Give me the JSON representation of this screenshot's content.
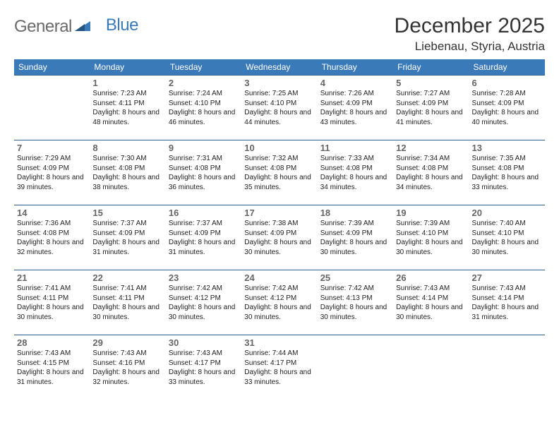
{
  "logo": {
    "part1": "General",
    "part2": "Blue"
  },
  "title": "December 2025",
  "location": "Liebenau, Styria, Austria",
  "colors": {
    "header_bg": "#3a7ab8",
    "header_text": "#ffffff",
    "border": "#2f5f8f",
    "logo_gray": "#6a6a6a",
    "logo_blue": "#3a7ab8",
    "daynum": "#666666",
    "text": "#222222"
  },
  "weekdays": [
    "Sunday",
    "Monday",
    "Tuesday",
    "Wednesday",
    "Thursday",
    "Friday",
    "Saturday"
  ],
  "weeks": [
    [
      null,
      {
        "n": "1",
        "sr": "7:23 AM",
        "ss": "4:11 PM",
        "dl": "8 hours and 48 minutes."
      },
      {
        "n": "2",
        "sr": "7:24 AM",
        "ss": "4:10 PM",
        "dl": "8 hours and 46 minutes."
      },
      {
        "n": "3",
        "sr": "7:25 AM",
        "ss": "4:10 PM",
        "dl": "8 hours and 44 minutes."
      },
      {
        "n": "4",
        "sr": "7:26 AM",
        "ss": "4:09 PM",
        "dl": "8 hours and 43 minutes."
      },
      {
        "n": "5",
        "sr": "7:27 AM",
        "ss": "4:09 PM",
        "dl": "8 hours and 41 minutes."
      },
      {
        "n": "6",
        "sr": "7:28 AM",
        "ss": "4:09 PM",
        "dl": "8 hours and 40 minutes."
      }
    ],
    [
      {
        "n": "7",
        "sr": "7:29 AM",
        "ss": "4:09 PM",
        "dl": "8 hours and 39 minutes."
      },
      {
        "n": "8",
        "sr": "7:30 AM",
        "ss": "4:08 PM",
        "dl": "8 hours and 38 minutes."
      },
      {
        "n": "9",
        "sr": "7:31 AM",
        "ss": "4:08 PM",
        "dl": "8 hours and 36 minutes."
      },
      {
        "n": "10",
        "sr": "7:32 AM",
        "ss": "4:08 PM",
        "dl": "8 hours and 35 minutes."
      },
      {
        "n": "11",
        "sr": "7:33 AM",
        "ss": "4:08 PM",
        "dl": "8 hours and 34 minutes."
      },
      {
        "n": "12",
        "sr": "7:34 AM",
        "ss": "4:08 PM",
        "dl": "8 hours and 34 minutes."
      },
      {
        "n": "13",
        "sr": "7:35 AM",
        "ss": "4:08 PM",
        "dl": "8 hours and 33 minutes."
      }
    ],
    [
      {
        "n": "14",
        "sr": "7:36 AM",
        "ss": "4:08 PM",
        "dl": "8 hours and 32 minutes."
      },
      {
        "n": "15",
        "sr": "7:37 AM",
        "ss": "4:09 PM",
        "dl": "8 hours and 31 minutes."
      },
      {
        "n": "16",
        "sr": "7:37 AM",
        "ss": "4:09 PM",
        "dl": "8 hours and 31 minutes."
      },
      {
        "n": "17",
        "sr": "7:38 AM",
        "ss": "4:09 PM",
        "dl": "8 hours and 30 minutes."
      },
      {
        "n": "18",
        "sr": "7:39 AM",
        "ss": "4:09 PM",
        "dl": "8 hours and 30 minutes."
      },
      {
        "n": "19",
        "sr": "7:39 AM",
        "ss": "4:10 PM",
        "dl": "8 hours and 30 minutes."
      },
      {
        "n": "20",
        "sr": "7:40 AM",
        "ss": "4:10 PM",
        "dl": "8 hours and 30 minutes."
      }
    ],
    [
      {
        "n": "21",
        "sr": "7:41 AM",
        "ss": "4:11 PM",
        "dl": "8 hours and 30 minutes."
      },
      {
        "n": "22",
        "sr": "7:41 AM",
        "ss": "4:11 PM",
        "dl": "8 hours and 30 minutes."
      },
      {
        "n": "23",
        "sr": "7:42 AM",
        "ss": "4:12 PM",
        "dl": "8 hours and 30 minutes."
      },
      {
        "n": "24",
        "sr": "7:42 AM",
        "ss": "4:12 PM",
        "dl": "8 hours and 30 minutes."
      },
      {
        "n": "25",
        "sr": "7:42 AM",
        "ss": "4:13 PM",
        "dl": "8 hours and 30 minutes."
      },
      {
        "n": "26",
        "sr": "7:43 AM",
        "ss": "4:14 PM",
        "dl": "8 hours and 30 minutes."
      },
      {
        "n": "27",
        "sr": "7:43 AM",
        "ss": "4:14 PM",
        "dl": "8 hours and 31 minutes."
      }
    ],
    [
      {
        "n": "28",
        "sr": "7:43 AM",
        "ss": "4:15 PM",
        "dl": "8 hours and 31 minutes."
      },
      {
        "n": "29",
        "sr": "7:43 AM",
        "ss": "4:16 PM",
        "dl": "8 hours and 32 minutes."
      },
      {
        "n": "30",
        "sr": "7:43 AM",
        "ss": "4:17 PM",
        "dl": "8 hours and 33 minutes."
      },
      {
        "n": "31",
        "sr": "7:44 AM",
        "ss": "4:17 PM",
        "dl": "8 hours and 33 minutes."
      },
      null,
      null,
      null
    ]
  ],
  "labels": {
    "sunrise": "Sunrise:",
    "sunset": "Sunset:",
    "daylight": "Daylight:"
  }
}
